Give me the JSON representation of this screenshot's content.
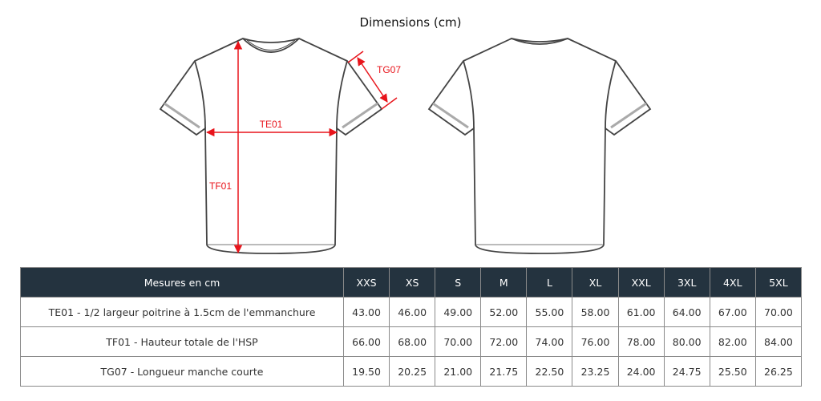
{
  "title": "Dimensions (cm)",
  "diagram": {
    "labels": {
      "chest": "TE01",
      "height": "TF01",
      "sleeve": "TG07"
    },
    "measure_color": "#e8141b",
    "header_color": "#24333f"
  },
  "table": {
    "header": "Mesures en cm",
    "sizes": [
      "XXS",
      "XS",
      "S",
      "M",
      "L",
      "XL",
      "XXL",
      "3XL",
      "4XL",
      "5XL"
    ],
    "rows": [
      {
        "label": "TE01 - 1/2 largeur poitrine à 1.5cm de l'emmanchure",
        "values": [
          "43.00",
          "46.00",
          "49.00",
          "52.00",
          "55.00",
          "58.00",
          "61.00",
          "64.00",
          "67.00",
          "70.00"
        ]
      },
      {
        "label": "TF01 - Hauteur totale de l'HSP",
        "values": [
          "66.00",
          "68.00",
          "70.00",
          "72.00",
          "74.00",
          "76.00",
          "78.00",
          "80.00",
          "82.00",
          "84.00"
        ]
      },
      {
        "label": "TG07 - Longueur manche courte",
        "values": [
          "19.50",
          "20.25",
          "21.00",
          "21.75",
          "22.50",
          "23.25",
          "24.00",
          "24.75",
          "25.50",
          "26.25"
        ]
      }
    ]
  }
}
